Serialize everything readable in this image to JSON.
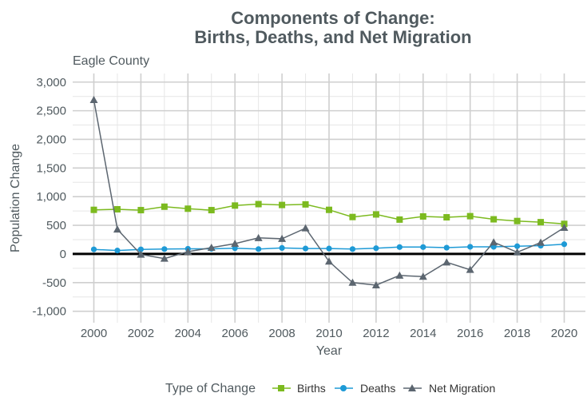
{
  "chart_data": {
    "type": "line",
    "title_lines": [
      "Components of Change:",
      "Births, Deaths, and Net Migration"
    ],
    "subtitle": "Eagle County",
    "xlabel": "Year",
    "ylabel": "Population Change",
    "xlim": [
      1999.1,
      2020.9
    ],
    "ylim": [
      -1200,
      3150
    ],
    "x_ticks": [
      2000,
      2002,
      2004,
      2006,
      2008,
      2010,
      2012,
      2014,
      2016,
      2018,
      2020
    ],
    "y_ticks": [
      -1000,
      -500,
      0,
      500,
      1000,
      1500,
      2000,
      2500,
      3000
    ],
    "y_tick_labels": [
      "-1,000",
      "-500",
      "0",
      "500",
      "1,000",
      "1,500",
      "2,000",
      "2,500",
      "3,000"
    ],
    "grid": true,
    "legend_title": "Type of Change",
    "legend_position": "bottom",
    "x": [
      2000,
      2001,
      2002,
      2003,
      2004,
      2005,
      2006,
      2007,
      2008,
      2009,
      2010,
      2011,
      2012,
      2013,
      2014,
      2015,
      2016,
      2017,
      2018,
      2019,
      2020
    ],
    "series": [
      {
        "name": "Births",
        "color": "#7cba1f",
        "marker": "square",
        "values": [
          770,
          780,
          765,
          825,
          790,
          765,
          845,
          870,
          855,
          865,
          770,
          645,
          690,
          600,
          655,
          640,
          660,
          605,
          575,
          555,
          525
        ]
      },
      {
        "name": "Deaths",
        "color": "#1e9ad6",
        "marker": "circle",
        "values": [
          80,
          60,
          80,
          85,
          90,
          90,
          100,
          85,
          105,
          95,
          95,
          85,
          100,
          120,
          120,
          110,
          125,
          125,
          135,
          145,
          170
        ]
      },
      {
        "name": "Net Migration",
        "color": "#5c6670",
        "marker": "triangle",
        "values": [
          2690,
          430,
          -10,
          -80,
          40,
          110,
          180,
          280,
          265,
          450,
          -130,
          -500,
          -545,
          -375,
          -395,
          -145,
          -275,
          205,
          30,
          200,
          460
        ]
      }
    ]
  }
}
